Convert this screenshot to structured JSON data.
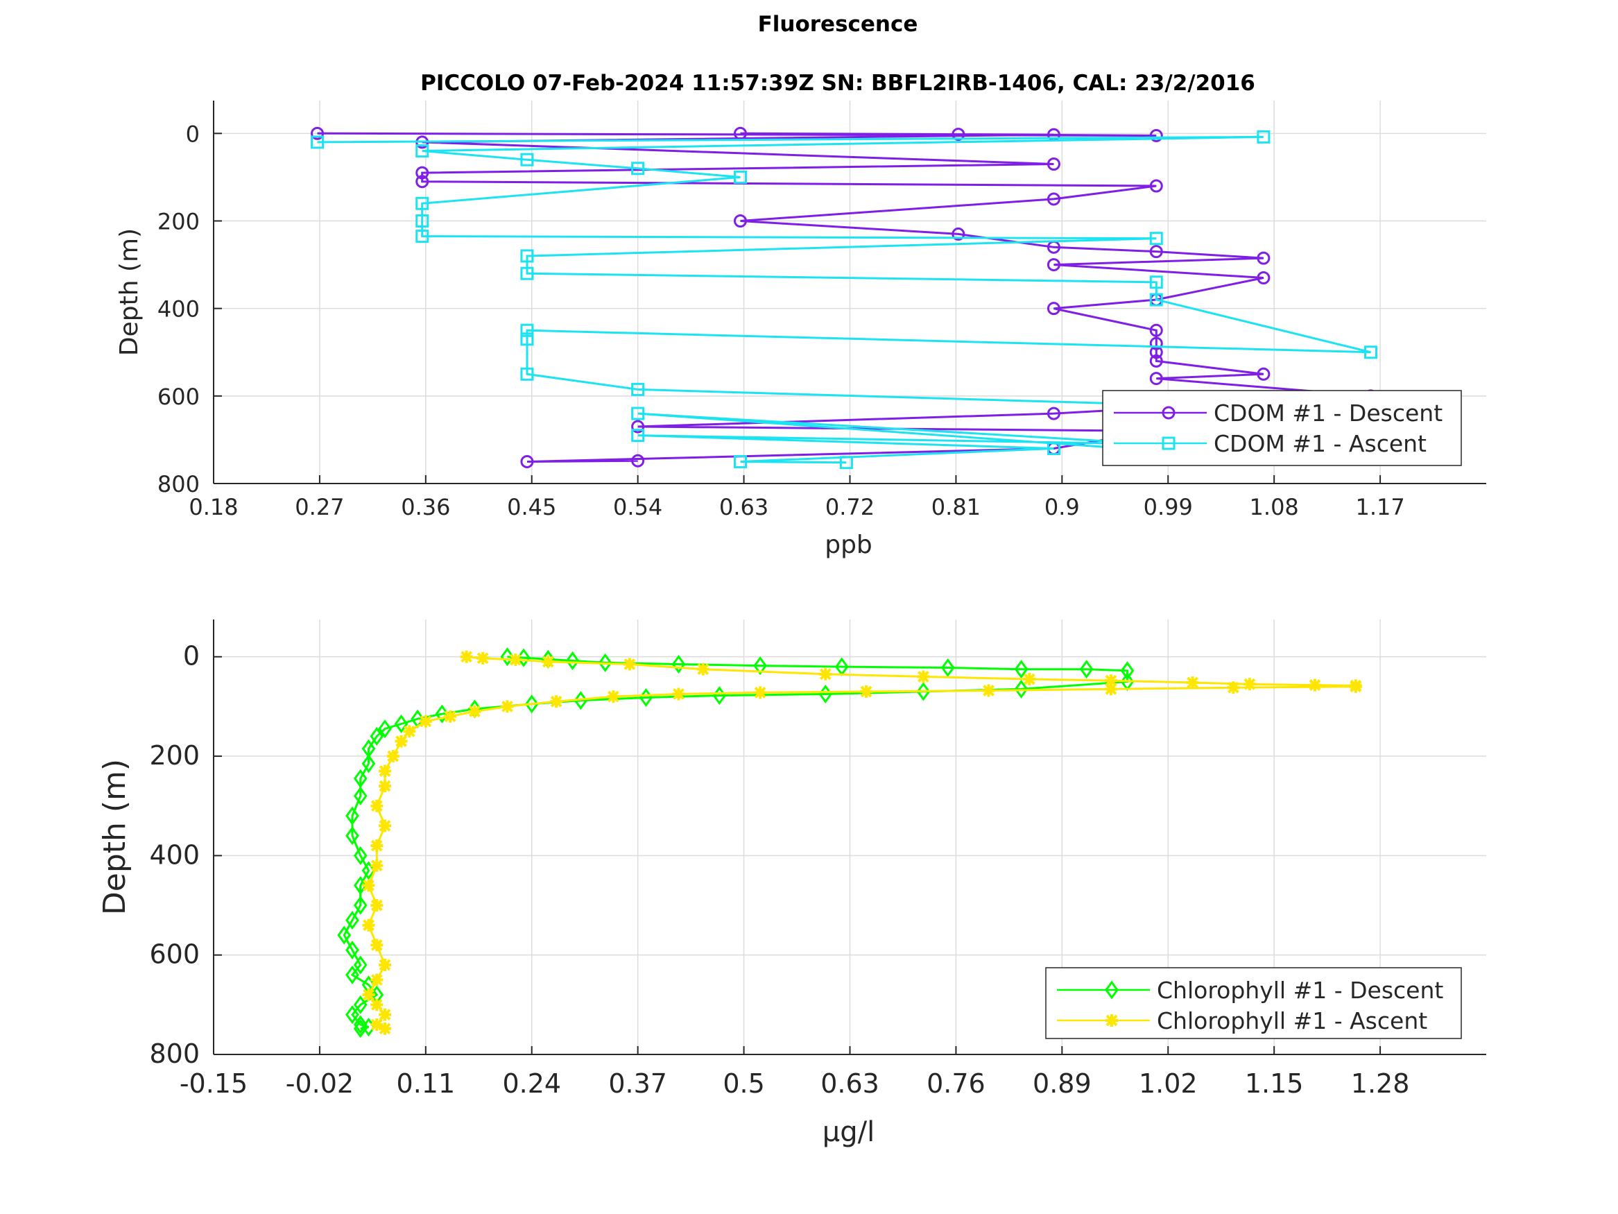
{
  "figure": {
    "title": "Fluorescence"
  },
  "chart_data": [
    {
      "type": "line",
      "title": "PICCOLO 07-Feb-2024 11:57:39Z          SN: BBFL2IRB-1406, CAL: 23/2/2016",
      "xlabel": "ppb",
      "ylabel": "Depth (m)",
      "xlim": [
        0.18,
        1.26
      ],
      "ylim": [
        800,
        -75
      ],
      "y_reversed": true,
      "grid": true,
      "legend_position": "bottom-right",
      "xticks": [
        "0.18",
        "0.27",
        "0.36",
        "0.45",
        "0.54",
        "0.63",
        "0.72",
        "0.81",
        "0.9",
        "0.99",
        "1.08",
        "1.17"
      ],
      "yticks": [
        "0",
        "200",
        "400",
        "600",
        "800"
      ],
      "series": [
        {
          "name": "CDOM #1 - Descent",
          "color": "#7f1fe6",
          "marker": "circle",
          "x": [
            0.268,
            0.98,
            0.812,
            0.627,
            0.893,
            0.357,
            0.893,
            0.357,
            0.357,
            0.98,
            0.893,
            0.627,
            0.812,
            0.893,
            0.98,
            1.071,
            0.893,
            1.071,
            0.98,
            0.893,
            0.98,
            0.98,
            0.98,
            0.98,
            1.071,
            0.98,
            1.162,
            0.893,
            0.54,
            0.98,
            0.893,
            0.446,
            0.54
          ],
          "y": [
            0,
            5,
            2,
            0,
            3,
            20,
            70,
            90,
            110,
            120,
            150,
            200,
            230,
            260,
            270,
            285,
            300,
            330,
            380,
            400,
            450,
            480,
            500,
            520,
            550,
            560,
            600,
            640,
            670,
            680,
            720,
            750,
            748
          ]
        },
        {
          "name": "CDOM #1 - Ascent",
          "color": "#1ce3f2",
          "marker": "square",
          "x": [
            0.268,
            1.071,
            0.357,
            0.446,
            0.54,
            0.627,
            0.357,
            0.357,
            0.357,
            0.98,
            0.446,
            0.446,
            0.98,
            0.98,
            1.162,
            0.446,
            0.446,
            0.446,
            0.54,
            0.98,
            0.98,
            0.98,
            0.54,
            0.98,
            0.54,
            0.893,
            0.627,
            0.717
          ],
          "y": [
            20,
            8,
            40,
            60,
            80,
            100,
            160,
            200,
            235,
            240,
            280,
            320,
            340,
            380,
            500,
            450,
            470,
            550,
            585,
            620,
            700,
            725,
            640,
            710,
            690,
            720,
            750,
            752
          ]
        }
      ]
    },
    {
      "type": "line",
      "title": "",
      "xlabel": "μg/l",
      "ylabel": "Depth (m)",
      "xlim": [
        -0.15,
        1.41
      ],
      "ylim": [
        800,
        -75
      ],
      "y_reversed": true,
      "grid": true,
      "legend_position": "bottom-right",
      "xticks": [
        "-0.15",
        "-0.02",
        "0.11",
        "0.24",
        "0.37",
        "0.5",
        "0.63",
        "0.76",
        "0.89",
        "1.02",
        "1.15",
        "1.28"
      ],
      "yticks": [
        "0",
        "200",
        "400",
        "600",
        "800"
      ],
      "series": [
        {
          "name": "Chlorophyll #1 - Descent",
          "color": "#00ff00",
          "marker": "diamond",
          "x": [
            0.21,
            0.23,
            0.26,
            0.29,
            0.33,
            0.42,
            0.52,
            0.62,
            0.75,
            0.84,
            0.92,
            0.97,
            0.97,
            0.84,
            0.72,
            0.6,
            0.47,
            0.38,
            0.3,
            0.24,
            0.17,
            0.13,
            0.1,
            0.08,
            0.06,
            0.05,
            0.04,
            0.04,
            0.03,
            0.03,
            0.02,
            0.02,
            0.03,
            0.04,
            0.03,
            0.03,
            0.02,
            0.01,
            0.02,
            0.03,
            0.02,
            0.04,
            0.05,
            0.03,
            0.02,
            0.03,
            0.04,
            0.03
          ],
          "y": [
            0,
            2,
            5,
            8,
            12,
            15,
            18,
            20,
            22,
            25,
            25,
            28,
            50,
            65,
            70,
            75,
            78,
            82,
            88,
            95,
            105,
            115,
            125,
            135,
            145,
            160,
            185,
            215,
            245,
            280,
            320,
            360,
            400,
            430,
            460,
            500,
            530,
            560,
            590,
            620,
            640,
            660,
            680,
            700,
            720,
            740,
            745,
            748
          ]
        },
        {
          "name": "Chlorophyll #1 - Ascent",
          "color": "#ffe600",
          "marker": "star",
          "x": [
            0.16,
            0.18,
            0.22,
            0.26,
            0.36,
            0.45,
            0.6,
            0.72,
            0.85,
            0.95,
            1.05,
            1.12,
            1.2,
            1.25,
            1.25,
            1.1,
            0.95,
            0.8,
            0.65,
            0.52,
            0.42,
            0.34,
            0.27,
            0.21,
            0.17,
            0.14,
            0.11,
            0.09,
            0.08,
            0.07,
            0.06,
            0.06,
            0.05,
            0.06,
            0.05,
            0.05,
            0.04,
            0.05,
            0.04,
            0.05,
            0.06,
            0.05,
            0.04,
            0.05,
            0.06,
            0.05,
            0.06
          ],
          "y": [
            0,
            3,
            6,
            10,
            15,
            25,
            35,
            40,
            45,
            48,
            52,
            55,
            57,
            58,
            60,
            62,
            65,
            68,
            70,
            72,
            75,
            80,
            90,
            100,
            110,
            120,
            130,
            150,
            170,
            200,
            230,
            260,
            300,
            340,
            380,
            420,
            460,
            500,
            540,
            580,
            620,
            650,
            680,
            700,
            720,
            740,
            748
          ]
        }
      ]
    }
  ]
}
